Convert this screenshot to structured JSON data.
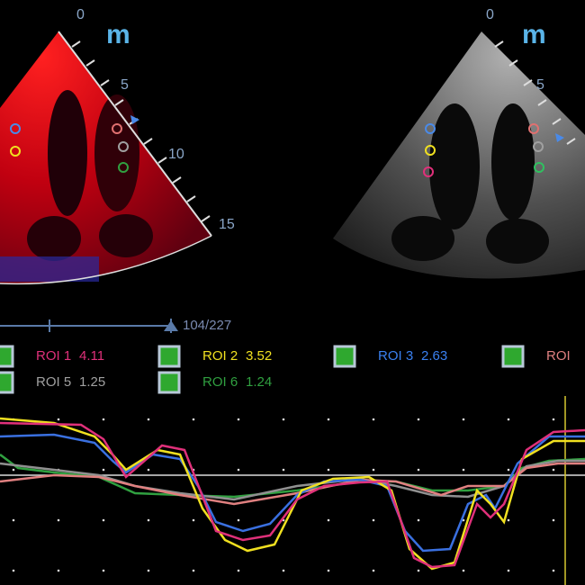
{
  "left_view": {
    "depth_labels": [
      "0",
      "5",
      "10",
      "15"
    ],
    "logo": "m"
  },
  "right_view": {
    "depth_labels": [
      "0",
      "5"
    ],
    "logo": "m"
  },
  "timeline": {
    "frame": "104/227"
  },
  "rois": [
    {
      "name": "ROI 1",
      "value": 4.11
    },
    {
      "name": "ROI 2",
      "value": 3.52
    },
    {
      "name": "ROI 3",
      "value": 2.63
    },
    {
      "name": "ROI"
    },
    {
      "name": "ROI 5",
      "value": 1.25
    },
    {
      "name": "ROI 6",
      "value": 1.24
    }
  ]
}
